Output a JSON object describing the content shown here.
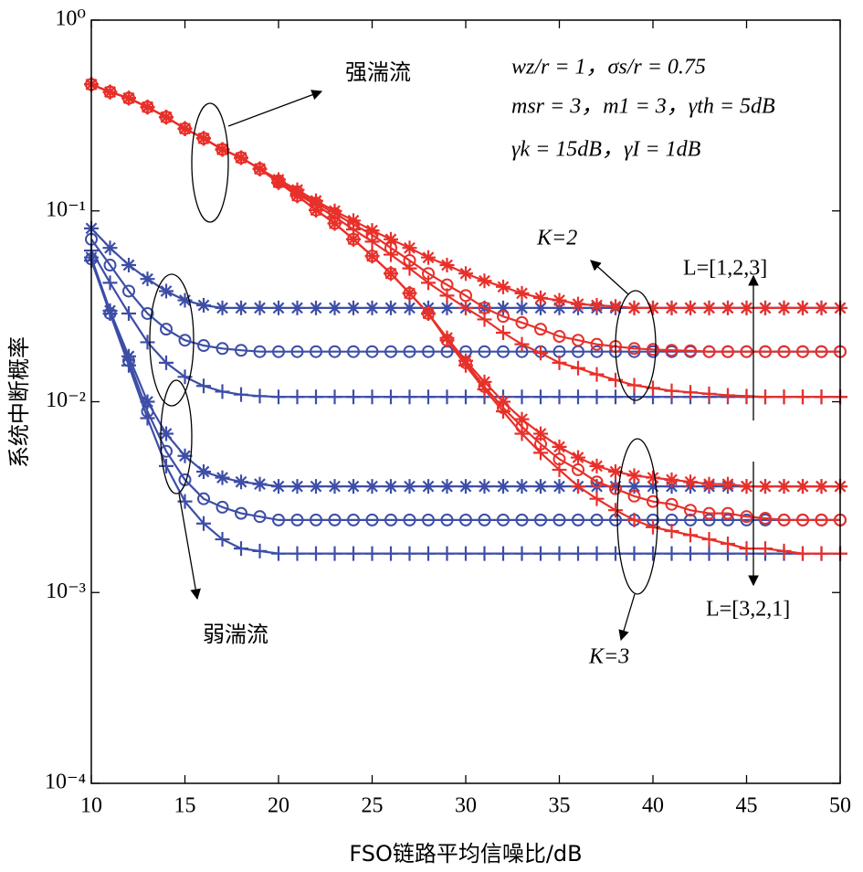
{
  "chart_data": {
    "type": "line",
    "xlabel": "FSO链路平均信噪比/dB",
    "ylabel": "系统中断概率",
    "xlim": [
      10,
      50
    ],
    "xticks": [
      10,
      15,
      20,
      25,
      30,
      35,
      40,
      45,
      50
    ],
    "ylim": [
      0.0001,
      1
    ],
    "log_y": true,
    "yticks": [
      {
        "value": 1,
        "label": "10⁰"
      },
      {
        "value": 0.1,
        "label": "10⁻¹"
      },
      {
        "value": 0.01,
        "label": "10⁻²"
      },
      {
        "value": 0.001,
        "label": "10⁻³"
      },
      {
        "value": 0.0001,
        "label": "10⁻⁴"
      }
    ],
    "annotations": [
      "强湍流",
      "弱湍流",
      "K=2",
      "K=3",
      "L=[1,2,3]",
      "L=[3,2,1]",
      "wz/r = 1，σs/r = 0.75",
      "msr = 3，m1 = 3，γth = 5dB",
      "γk = 15dB，γI = 1dB"
    ],
    "x": [
      10,
      11,
      12,
      13,
      14,
      15,
      16,
      17,
      18,
      19,
      20,
      21,
      22,
      23,
      24,
      25,
      26,
      27,
      28,
      29,
      30,
      31,
      32,
      33,
      34,
      35,
      36,
      37,
      38,
      39,
      40,
      41,
      42,
      43,
      44,
      45,
      46,
      47,
      48,
      49,
      50
    ],
    "series": [
      {
        "color": "#3d4ea6",
        "marker": "star",
        "values": [
          0.081,
          0.064,
          0.052,
          0.044,
          0.038,
          0.034,
          0.032,
          0.031,
          0.031,
          0.031,
          0.031,
          0.031,
          0.031,
          0.031,
          0.031,
          0.031,
          0.031,
          0.031,
          0.031,
          0.031,
          0.031,
          0.031,
          0.031,
          0.031,
          0.031,
          0.031,
          0.031,
          0.031,
          0.031,
          0.031,
          0.031,
          0.031,
          0.031,
          0.031,
          0.031,
          0.031,
          0.031,
          0.031,
          0.031,
          0.031,
          0.031
        ]
      },
      {
        "color": "#3d4ea6",
        "marker": "circle",
        "values": [
          0.071,
          0.052,
          0.038,
          0.029,
          0.024,
          0.021,
          0.0197,
          0.019,
          0.0186,
          0.0183,
          0.0183,
          0.0183,
          0.0183,
          0.0183,
          0.0183,
          0.0183,
          0.0183,
          0.0183,
          0.0183,
          0.0183,
          0.0183,
          0.0183,
          0.0183,
          0.0183,
          0.0183,
          0.0183,
          0.0183,
          0.0183,
          0.0183,
          0.0183,
          0.0183,
          0.0183,
          0.0183,
          0.0183,
          0.0183,
          0.0183,
          0.0183,
          0.0183,
          0.0183,
          0.0183,
          0.0183
        ]
      },
      {
        "color": "#3d4ea6",
        "marker": "plus",
        "values": [
          0.062,
          0.042,
          0.029,
          0.0205,
          0.016,
          0.0135,
          0.0121,
          0.0113,
          0.0109,
          0.0107,
          0.0106,
          0.0106,
          0.0106,
          0.0106,
          0.0106,
          0.0106,
          0.0106,
          0.0106,
          0.0106,
          0.0106,
          0.0106,
          0.0106,
          0.0106,
          0.0106,
          0.0106,
          0.0106,
          0.0106,
          0.0106,
          0.0106,
          0.0106,
          0.0106,
          0.0106,
          0.0106,
          0.0106,
          0.0106,
          0.0106,
          0.0106,
          0.0106,
          0.0106,
          0.0106,
          0.0106
        ]
      },
      {
        "color": "#3d4ea6",
        "marker": "star",
        "values": [
          0.057,
          0.03,
          0.0173,
          0.01,
          0.0068,
          0.0052,
          0.0043,
          0.004,
          0.0038,
          0.0037,
          0.0036,
          0.0036,
          0.0036,
          0.0036,
          0.0036,
          0.0036,
          0.0036,
          0.0036,
          0.0036,
          0.0036,
          0.0036,
          0.0036,
          0.0036,
          0.0036,
          0.0036,
          0.0036,
          0.0036,
          0.0036,
          0.0036,
          0.0036,
          0.0036,
          0.0036,
          0.0036,
          0.0036,
          0.0036,
          0.0036,
          0.0036,
          0.0036,
          0.0036,
          0.0036,
          0.0036
        ]
      },
      {
        "color": "#3d4ea6",
        "marker": "circle",
        "values": [
          0.056,
          0.029,
          0.0164,
          0.0089,
          0.0055,
          0.0039,
          0.0031,
          0.0028,
          0.0026,
          0.0025,
          0.0024,
          0.0024,
          0.0024,
          0.0024,
          0.0024,
          0.0024,
          0.0024,
          0.0024,
          0.0024,
          0.0024,
          0.0024,
          0.0024,
          0.0024,
          0.0024,
          0.0024,
          0.0024,
          0.0024,
          0.0024,
          0.0024,
          0.0024,
          0.0024,
          0.0024,
          0.0024,
          0.0024,
          0.0024,
          0.0024,
          0.0024,
          0.0024,
          0.0024,
          0.0024,
          0.0024
        ]
      },
      {
        "color": "#3d4ea6",
        "marker": "plus",
        "values": [
          0.055,
          0.029,
          0.0155,
          0.0082,
          0.0046,
          0.003,
          0.0023,
          0.0019,
          0.0017,
          0.00165,
          0.0016,
          0.0016,
          0.0016,
          0.0016,
          0.0016,
          0.0016,
          0.0016,
          0.0016,
          0.0016,
          0.0016,
          0.0016,
          0.0016,
          0.0016,
          0.0016,
          0.0016,
          0.0016,
          0.0016,
          0.0016,
          0.0016,
          0.0016,
          0.0016,
          0.0016,
          0.0016,
          0.0016,
          0.0016,
          0.0016,
          0.0016,
          0.0016,
          0.0016,
          0.0016,
          0.0016
        ]
      },
      {
        "color": "#e8302a",
        "marker": "star",
        "values": [
          0.46,
          0.42,
          0.39,
          0.35,
          0.31,
          0.27,
          0.24,
          0.21,
          0.19,
          0.166,
          0.146,
          0.129,
          0.113,
          0.1,
          0.089,
          0.079,
          0.071,
          0.064,
          0.057,
          0.052,
          0.047,
          0.043,
          0.04,
          0.037,
          0.035,
          0.034,
          0.0325,
          0.032,
          0.0316,
          0.031,
          0.031,
          0.031,
          0.031,
          0.031,
          0.031,
          0.031,
          0.031,
          0.031,
          0.031,
          0.031,
          0.031
        ]
      },
      {
        "color": "#e8302a",
        "marker": "circle",
        "values": [
          0.46,
          0.42,
          0.39,
          0.35,
          0.31,
          0.27,
          0.24,
          0.21,
          0.19,
          0.166,
          0.144,
          0.126,
          0.11,
          0.097,
          0.085,
          0.075,
          0.064,
          0.055,
          0.047,
          0.041,
          0.036,
          0.031,
          0.028,
          0.026,
          0.024,
          0.022,
          0.021,
          0.02,
          0.0195,
          0.019,
          0.0188,
          0.0186,
          0.0185,
          0.0183,
          0.0183,
          0.0183,
          0.0183,
          0.0183,
          0.0183,
          0.0183,
          0.0183
        ]
      },
      {
        "color": "#e8302a",
        "marker": "plus",
        "values": [
          0.46,
          0.42,
          0.39,
          0.35,
          0.31,
          0.27,
          0.24,
          0.21,
          0.19,
          0.166,
          0.141,
          0.123,
          0.107,
          0.093,
          0.08,
          0.069,
          0.059,
          0.05,
          0.042,
          0.036,
          0.031,
          0.027,
          0.023,
          0.02,
          0.018,
          0.016,
          0.015,
          0.0139,
          0.013,
          0.0122,
          0.0118,
          0.0114,
          0.0112,
          0.011,
          0.0108,
          0.0107,
          0.0106,
          0.0106,
          0.0106,
          0.0106,
          0.0106
        ]
      },
      {
        "color": "#e8302a",
        "marker": "star",
        "values": [
          0.46,
          0.42,
          0.39,
          0.35,
          0.31,
          0.27,
          0.24,
          0.21,
          0.19,
          0.166,
          0.141,
          0.12,
          0.101,
          0.086,
          0.071,
          0.058,
          0.047,
          0.037,
          0.029,
          0.0216,
          0.0164,
          0.0127,
          0.01,
          0.0081,
          0.0068,
          0.0058,
          0.0051,
          0.0046,
          0.0043,
          0.0041,
          0.004,
          0.0039,
          0.0038,
          0.0037,
          0.0037,
          0.0036,
          0.0036,
          0.0036,
          0.0036,
          0.0036,
          0.0036
        ]
      },
      {
        "color": "#e8302a",
        "marker": "circle",
        "values": [
          0.46,
          0.42,
          0.39,
          0.35,
          0.31,
          0.27,
          0.24,
          0.21,
          0.19,
          0.166,
          0.141,
          0.12,
          0.101,
          0.086,
          0.071,
          0.058,
          0.047,
          0.037,
          0.029,
          0.021,
          0.016,
          0.012,
          0.0093,
          0.0074,
          0.006,
          0.005,
          0.0044,
          0.0038,
          0.0035,
          0.0032,
          0.003,
          0.0029,
          0.0027,
          0.0026,
          0.0026,
          0.0025,
          0.00245,
          0.0024,
          0.0024,
          0.0024,
          0.0024
        ]
      },
      {
        "color": "#e8302a",
        "marker": "plus",
        "values": [
          0.46,
          0.42,
          0.39,
          0.35,
          0.31,
          0.27,
          0.24,
          0.21,
          0.19,
          0.166,
          0.141,
          0.12,
          0.101,
          0.086,
          0.071,
          0.058,
          0.047,
          0.037,
          0.029,
          0.021,
          0.0155,
          0.0116,
          0.0089,
          0.0068,
          0.0054,
          0.0044,
          0.0036,
          0.0031,
          0.0027,
          0.0024,
          0.0022,
          0.0021,
          0.002,
          0.0019,
          0.0018,
          0.0017,
          0.0017,
          0.00165,
          0.0016,
          0.0016,
          0.0016
        ]
      }
    ]
  }
}
